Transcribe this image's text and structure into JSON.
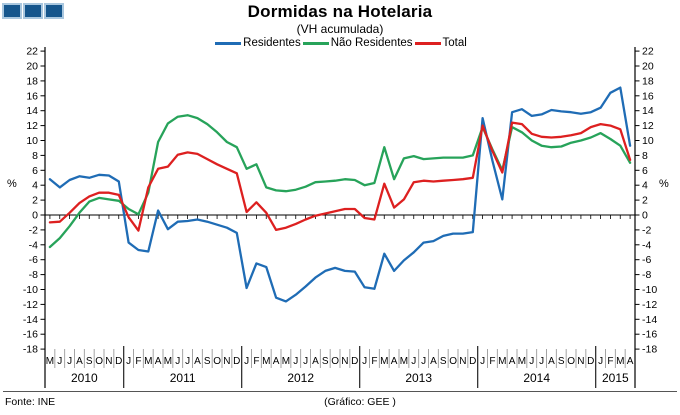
{
  "logo": {
    "square_count": 3,
    "fill": "#15568D",
    "border": "#A9C7DF"
  },
  "header": {
    "title": "Dormidas na Hotelaria",
    "subtitle": "(VH acumulada)"
  },
  "legend": {
    "items": [
      {
        "label": "Residentes",
        "color": "#1F6CB5"
      },
      {
        "label": "Não Residentes",
        "color": "#27A35A"
      },
      {
        "label": "Total",
        "color": "#DD2020"
      }
    ]
  },
  "footer": {
    "source": "Fonte: INE",
    "credit": "(Gráfico: GEE )"
  },
  "chart_data": {
    "type": "line",
    "title": "Dormidas na Hotelaria",
    "subtitle": "(VH acumulada)",
    "ylabel_left": "%",
    "ylabel_right": "%",
    "ylim": [
      -18,
      22
    ],
    "ytick_step": 2,
    "grid": false,
    "zero_line": true,
    "legend_position": "top",
    "months": [
      "M",
      "J",
      "J",
      "A",
      "S",
      "O",
      "N",
      "D",
      "J",
      "F",
      "M",
      "A",
      "M",
      "J",
      "J",
      "A",
      "S",
      "O",
      "N",
      "D",
      "J",
      "F",
      "M",
      "A",
      "M",
      "J",
      "J",
      "A",
      "S",
      "O",
      "N",
      "D",
      "J",
      "F",
      "M",
      "A",
      "M",
      "J",
      "J",
      "A",
      "S",
      "O",
      "N",
      "D",
      "J",
      "F",
      "M",
      "A",
      "M",
      "J",
      "J",
      "A",
      "S",
      "O",
      "N",
      "D",
      "J",
      "F",
      "M",
      "A"
    ],
    "year_groups": [
      {
        "label": "2010",
        "count": 8
      },
      {
        "label": "2011",
        "count": 12
      },
      {
        "label": "2012",
        "count": 12
      },
      {
        "label": "2013",
        "count": 12
      },
      {
        "label": "2014",
        "count": 12
      },
      {
        "label": "2015",
        "count": 4
      }
    ],
    "series": [
      {
        "name": "Residentes",
        "color": "#1F6CB5",
        "values": [
          4.8,
          3.7,
          4.7,
          5.2,
          5.0,
          5.4,
          5.3,
          4.5,
          -3.7,
          -4.7,
          -4.9,
          0.6,
          -1.9,
          -0.9,
          -0.8,
          -0.6,
          -0.9,
          -1.3,
          -1.7,
          -2.4,
          -9.8,
          -6.5,
          -7.0,
          -11.1,
          -11.6,
          -10.7,
          -9.6,
          -8.4,
          -7.5,
          -7.1,
          -7.5,
          -7.6,
          -9.7,
          -9.9,
          -5.2,
          -7.5,
          -6.1,
          -5.0,
          -3.7,
          -3.5,
          -2.8,
          -2.5,
          -2.5,
          -2.3,
          13.0,
          7.3,
          2.1,
          13.8,
          14.2,
          13.3,
          13.5,
          14.1,
          13.9,
          13.8,
          13.6,
          13.8,
          14.4,
          16.4,
          17.1,
          9.3
        ]
      },
      {
        "name": "Não Residentes",
        "color": "#27A35A",
        "values": [
          -4.3,
          -3.1,
          -1.5,
          0.3,
          1.8,
          2.3,
          2.1,
          1.9,
          0.8,
          0.1,
          3.0,
          9.8,
          12.3,
          13.2,
          13.4,
          13.0,
          12.2,
          11.1,
          9.8,
          9.1,
          6.2,
          6.8,
          3.7,
          3.3,
          3.2,
          3.4,
          3.8,
          4.4,
          4.5,
          4.6,
          4.8,
          4.7,
          4.0,
          4.3,
          9.1,
          4.8,
          7.6,
          7.9,
          7.5,
          7.6,
          7.7,
          7.7,
          7.7,
          8.0,
          11.8,
          8.8,
          6.0,
          11.8,
          11.1,
          10.0,
          9.3,
          9.1,
          9.2,
          9.7,
          10.0,
          10.4,
          11.0,
          10.2,
          9.3,
          7.0
        ]
      },
      {
        "name": "Total",
        "color": "#DD2020",
        "values": [
          -1.0,
          -0.9,
          0.3,
          1.6,
          2.5,
          3.0,
          3.0,
          2.7,
          -0.3,
          -2.1,
          3.7,
          6.2,
          6.5,
          8.1,
          8.4,
          8.2,
          7.5,
          6.8,
          6.2,
          5.6,
          0.4,
          1.7,
          0.3,
          -2.0,
          -1.7,
          -1.2,
          -0.6,
          -0.1,
          0.2,
          0.5,
          0.8,
          0.8,
          -0.4,
          -0.6,
          4.2,
          1.0,
          2.1,
          4.4,
          4.6,
          4.5,
          4.6,
          4.7,
          4.8,
          5.0,
          12.0,
          8.6,
          5.7,
          12.4,
          12.2,
          10.9,
          10.5,
          10.4,
          10.5,
          10.7,
          11.0,
          11.8,
          12.2,
          12.0,
          11.5,
          7.4
        ]
      }
    ]
  }
}
